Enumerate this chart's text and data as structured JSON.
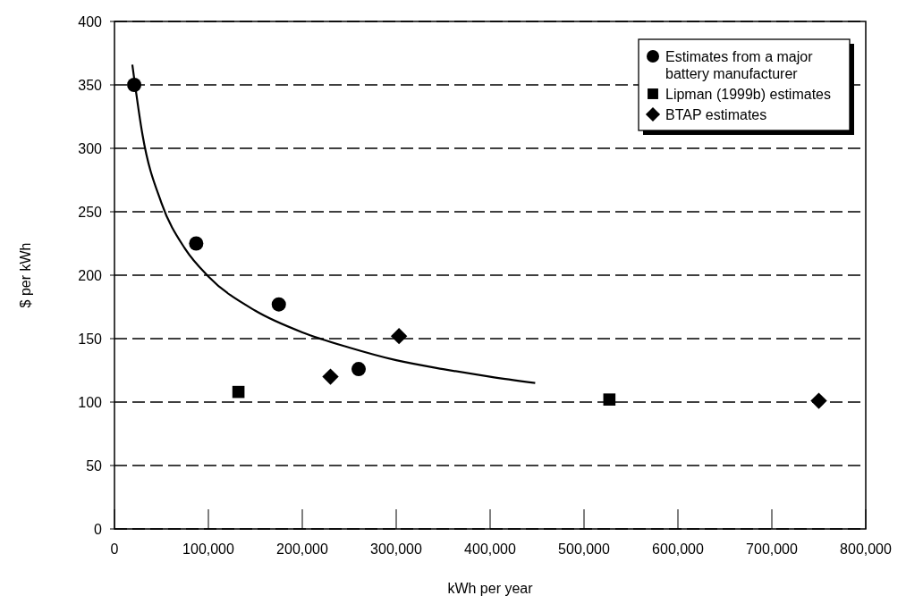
{
  "chart_data": {
    "type": "scatter",
    "xlabel": "kWh per year",
    "ylabel": "$ per kWh",
    "xlim": [
      0,
      800000
    ],
    "ylim": [
      0,
      400
    ],
    "xticks": [
      0,
      {
        "value": 100000,
        "label": "100,000"
      },
      {
        "value": 200000,
        "label": "200,000"
      },
      {
        "value": 300000,
        "label": "300,000"
      },
      {
        "value": 400000,
        "label": "400,000"
      },
      {
        "value": 500000,
        "label": "500,000"
      },
      {
        "value": 600000,
        "label": "600,000"
      },
      {
        "value": 700000,
        "label": "700,000"
      },
      {
        "value": 800000,
        "label": "800,000"
      }
    ],
    "yticks": [
      0,
      50,
      100,
      150,
      200,
      250,
      300,
      350,
      400
    ],
    "grid": "y",
    "legend": "top right",
    "series": [
      {
        "name": "Estimates from a major battery manufacturer",
        "color": "#000000",
        "marker": "circle",
        "x": [
          21000,
          87000,
          175000,
          260000
        ],
        "values": [
          350,
          225,
          177,
          126
        ]
      },
      {
        "name": "Lipman (1999b) estimates",
        "color": "#000000",
        "marker": "square",
        "x": [
          132000,
          527000
        ],
        "values": [
          108,
          102
        ]
      },
      {
        "name": "BTAP estimates",
        "color": "#000000",
        "marker": "diamond",
        "x": [
          230000,
          303000,
          750000
        ],
        "values": [
          120,
          152,
          101
        ]
      },
      {
        "type": "line",
        "color": "#000000",
        "x": [
          19000,
          30000,
          50000,
          75000,
          100000,
          150000,
          200000,
          250000,
          300000,
          350000,
          400000,
          448000
        ],
        "values": [
          366,
          310,
          257,
          221,
          199,
          172,
          155,
          143,
          133,
          126,
          120,
          115
        ]
      }
    ]
  }
}
